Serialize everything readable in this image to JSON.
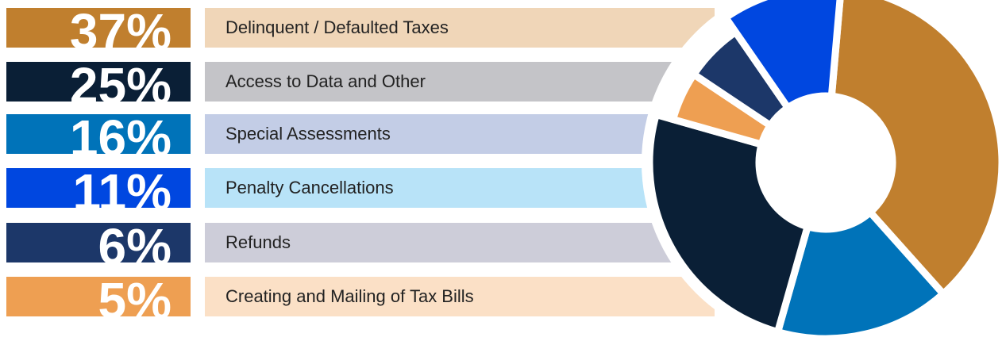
{
  "chart_data": {
    "type": "donut",
    "categories": [
      "Delinquent / Defaulted Taxes",
      "Access to Data and Other",
      "Special Assessments",
      "Penalty Cancellations",
      "Refunds",
      "Creating and Mailing of Tax Bills"
    ],
    "values": [
      37,
      25,
      16,
      11,
      6,
      5
    ],
    "value_labels": [
      "37%",
      "25%",
      "16%",
      "11%",
      "6%",
      "5%"
    ],
    "colors": [
      "#c07f2e",
      "#0a1f36",
      "#0073b9",
      "#0047e0",
      "#1c3769",
      "#ee9f52"
    ],
    "band_colors": [
      "#f0d6b8",
      "#c4c4c8",
      "#c3cde6",
      "#b8e3f8",
      "#cdcdd9",
      "#fbe0c6"
    ]
  }
}
